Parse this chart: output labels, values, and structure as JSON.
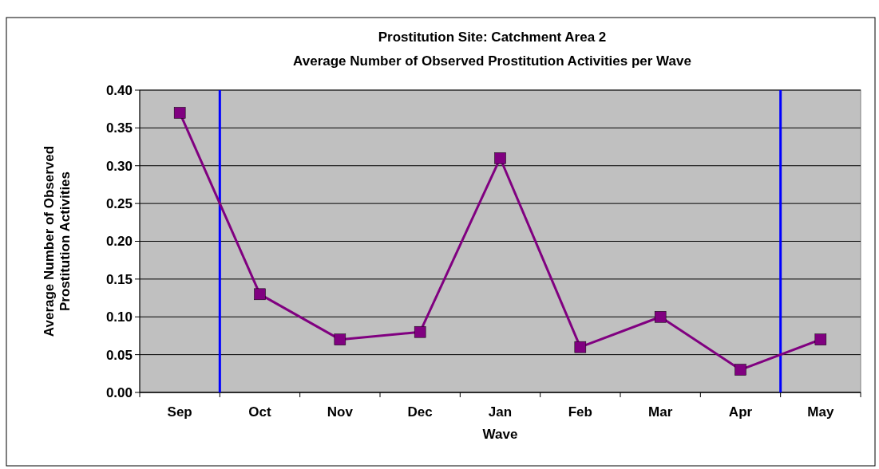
{
  "chart_data": {
    "type": "line",
    "title": "Prostitution Site: Catchment Area 2",
    "subtitle": "Average Number of Observed Prostitution Activities per Wave",
    "xlabel": "Wave",
    "ylabel": "Average Number of Observed Prostitution Activities",
    "categories": [
      "Sep",
      "Oct",
      "Nov",
      "Dec",
      "Jan",
      "Feb",
      "Mar",
      "Apr",
      "May"
    ],
    "series": [
      {
        "color": "#800080",
        "values": [
          0.37,
          0.13,
          0.07,
          0.08,
          0.31,
          0.06,
          0.1,
          0.03,
          0.07
        ]
      }
    ],
    "ylim": [
      0,
      0.4
    ],
    "yticks": [
      {
        "value": 0,
        "label": "0.00"
      },
      {
        "value": 0.05,
        "label": "0.05"
      },
      {
        "value": 0.1,
        "label": "0.10"
      },
      {
        "value": 0.15,
        "label": "0.15"
      },
      {
        "value": 0.2,
        "label": "0.20"
      },
      {
        "value": 0.25,
        "label": "0.25"
      },
      {
        "value": 0.3,
        "label": "0.30"
      },
      {
        "value": 0.35,
        "label": "0.35"
      },
      {
        "value": 0.4,
        "label": "0.40"
      }
    ],
    "grid": "y",
    "marker": "square",
    "line_style": "solid"
  }
}
